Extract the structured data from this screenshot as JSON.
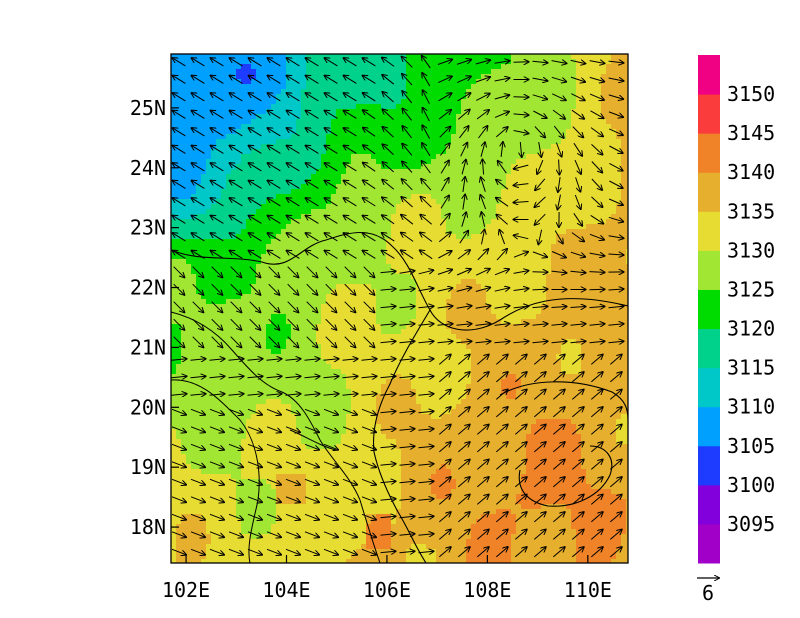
{
  "chart_data": {
    "type": "heatmap",
    "description_units": "geopotential height contours with wind vectors",
    "x_axis": {
      "range": [
        101.7,
        110.8
      ],
      "ticks": [
        102,
        104,
        106,
        108,
        110
      ],
      "tick_labels": [
        "102E",
        "104E",
        "106E",
        "108E",
        "110E"
      ]
    },
    "y_axis": {
      "range": [
        17.4,
        25.9
      ],
      "ticks": [
        18,
        19,
        20,
        21,
        22,
        23,
        24,
        25
      ],
      "tick_labels": [
        "18N",
        "19N",
        "20N",
        "21N",
        "22N",
        "23N",
        "24N",
        "25N"
      ]
    },
    "colorbar": {
      "levels": [
        3095,
        3100,
        3105,
        3110,
        3115,
        3120,
        3125,
        3130,
        3135,
        3140,
        3145,
        3150
      ],
      "labels": [
        "3095",
        "3100",
        "3105",
        "3110",
        "3115",
        "3120",
        "3125",
        "3130",
        "3135",
        "3140",
        "3145",
        "3150"
      ],
      "colors": [
        "#a000c8",
        "#8200dc",
        "#1e3cff",
        "#00a0ff",
        "#00c8c8",
        "#00d28c",
        "#00dc00",
        "#a0e632",
        "#e6dc32",
        "#e6af2d",
        "#f08228",
        "#fa3c3c",
        "#f00082"
      ]
    },
    "vector_reference": {
      "label": "6",
      "magnitude": 6
    },
    "grid": false,
    "field_approx": [
      [
        3134,
        3133,
        3132,
        3133,
        3136,
        3137,
        3139,
        3140,
        3140,
        3138
      ],
      [
        3133,
        3131,
        3131,
        3132,
        3135,
        3138,
        3140,
        3141,
        3140,
        3139
      ],
      [
        3130,
        3129,
        3130,
        3131,
        3134,
        3137,
        3139,
        3140,
        3139,
        3137
      ],
      [
        3127,
        3127,
        3128,
        3130,
        3133,
        3135,
        3137,
        3138,
        3137,
        3136
      ],
      [
        3125,
        3126,
        3127,
        3130,
        3131,
        3133,
        3135,
        3136,
        3137,
        3137
      ],
      [
        3123,
        3125,
        3126,
        3129,
        3130,
        3131,
        3133,
        3135,
        3136,
        3137
      ],
      [
        3112,
        3116,
        3121,
        3126,
        3128,
        3129,
        3130,
        3132,
        3134,
        3136
      ],
      [
        3108,
        3110,
        3116,
        3122,
        3120,
        3125,
        3127,
        3129,
        3132,
        3136
      ],
      [
        3105,
        3106,
        3110,
        3117,
        3119,
        3122,
        3125,
        3127,
        3131,
        3136
      ]
    ],
    "field_lat": [
      17.5,
      18.5,
      19.5,
      20.5,
      21.5,
      22.5,
      23.5,
      24.5,
      25.5
    ],
    "field_lon": [
      102,
      103,
      104,
      105,
      106,
      107,
      108,
      109,
      110,
      110.8
    ]
  }
}
